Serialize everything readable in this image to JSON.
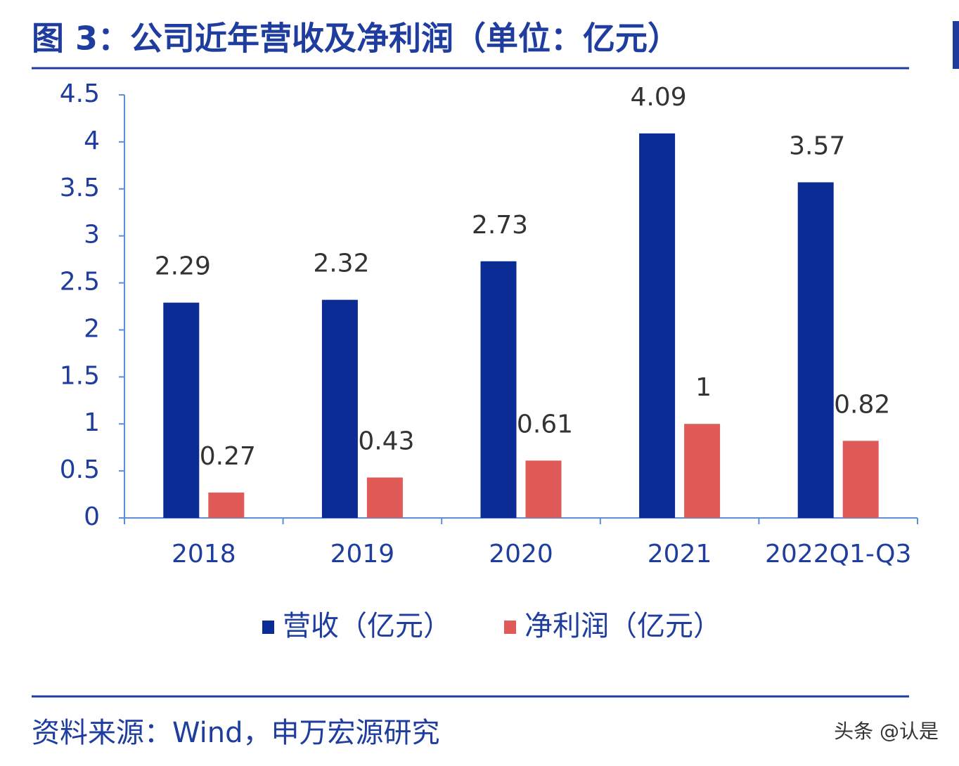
{
  "chart_data": {
    "type": "bar",
    "title": "图 3：公司近年营收及净利润（单位：亿元）",
    "categories": [
      "2018",
      "2019",
      "2020",
      "2021",
      "2022Q1-Q3"
    ],
    "series": [
      {
        "name": "营收（亿元）",
        "color": "#0b2b95",
        "values": [
          2.29,
          2.32,
          2.73,
          4.09,
          3.57
        ]
      },
      {
        "name": "净利润（亿元）",
        "color": "#e05a57",
        "values": [
          0.27,
          0.43,
          0.61,
          1,
          0.82
        ]
      }
    ],
    "ylim": [
      0,
      4.5
    ],
    "yticks": [
      0,
      0.5,
      1,
      1.5,
      2,
      2.5,
      3,
      3.5,
      4,
      4.5
    ],
    "source": "资料来源：Wind，申万宏源研究",
    "watermark": "头条 @认是"
  }
}
